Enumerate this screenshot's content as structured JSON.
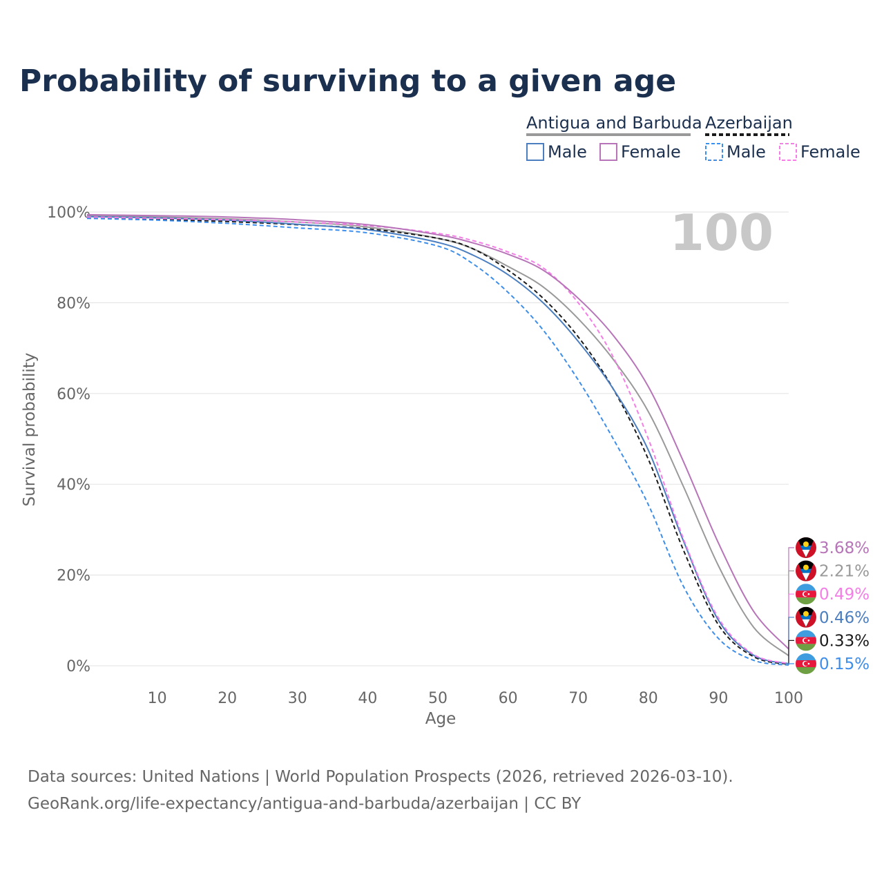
{
  "page": {
    "title": "Probability of surviving to a given age",
    "source_line1": "Data sources: United Nations | World Population Prospects (2026, retrieved 2026-03-10).",
    "source_line2": "GeoRank.org/life-expectancy/antigua-and-barbuda/azerbaijan | CC BY",
    "age_display": "100"
  },
  "legend": {
    "country1": "Antigua and Barbuda",
    "country2": "Azerbaijan",
    "male": "Male",
    "female": "Female"
  },
  "colors": {
    "ab_male": "#4a7ec0",
    "ab_female": "#b774b8",
    "ab_total": "#999999",
    "az_male": "#3d8eea",
    "az_female": "#f47ee6",
    "az_total": "#1a1a1a",
    "title": "#1b2f4e",
    "grid": "#e6e6e6"
  },
  "chart_data": {
    "type": "line",
    "title": "Probability of surviving to a given age",
    "xlabel": "Age",
    "ylabel": "Survival probability",
    "xlim": [
      0,
      100
    ],
    "ylim": [
      0,
      100
    ],
    "xticks": [
      10,
      20,
      30,
      40,
      50,
      60,
      70,
      80,
      90,
      100
    ],
    "yticks": [
      0,
      20,
      40,
      60,
      80,
      100
    ],
    "ytick_labels": [
      "0%",
      "20%",
      "40%",
      "60%",
      "80%",
      "100%"
    ],
    "x": [
      0,
      10,
      20,
      30,
      40,
      50,
      55,
      60,
      65,
      70,
      75,
      80,
      85,
      90,
      95,
      100
    ],
    "series": [
      {
        "name": "Antigua and Barbuda Female",
        "key": "ab_female",
        "dash": false,
        "values": [
          99.4,
          99.2,
          98.9,
          98.3,
          97.2,
          95.0,
          93.2,
          90.7,
          87.2,
          81.0,
          72.8,
          61.5,
          45.0,
          27.0,
          12.0,
          3.68
        ],
        "end_label": "3.68%"
      },
      {
        "name": "Antigua and Barbuda Total",
        "key": "ab_total",
        "dash": false,
        "values": [
          99.2,
          98.9,
          98.5,
          97.8,
          96.7,
          94.2,
          91.9,
          88.0,
          83.5,
          76.5,
          67.5,
          56.0,
          39.5,
          22.0,
          8.5,
          2.21
        ],
        "end_label": "2.21%"
      },
      {
        "name": "Azerbaijan Female",
        "key": "az_female",
        "dash": true,
        "values": [
          98.9,
          98.6,
          98.3,
          97.8,
          97.0,
          95.3,
          93.7,
          91.2,
          87.7,
          80.0,
          68.0,
          50.0,
          28.0,
          10.5,
          2.5,
          0.49
        ],
        "end_label": "0.49%"
      },
      {
        "name": "Antigua and Barbuda Male",
        "key": "ab_male",
        "dash": false,
        "values": [
          99.0,
          98.7,
          98.2,
          97.3,
          96.1,
          93.3,
          90.5,
          86.2,
          80.0,
          71.5,
          61.0,
          47.5,
          27.5,
          10.0,
          2.3,
          0.46
        ],
        "end_label": "0.46%"
      },
      {
        "name": "Azerbaijan Total",
        "key": "az_total",
        "dash": true,
        "values": [
          98.8,
          98.4,
          97.9,
          97.2,
          96.3,
          94.2,
          91.9,
          87.2,
          81.0,
          72.5,
          61.0,
          45.5,
          25.5,
          9.0,
          2.0,
          0.33
        ],
        "end_label": "0.33%"
      },
      {
        "name": "Azerbaijan Male",
        "key": "az_male",
        "dash": true,
        "values": [
          98.6,
          98.2,
          97.5,
          96.5,
          95.4,
          92.5,
          88.6,
          82.3,
          74.0,
          63.0,
          50.0,
          35.5,
          17.5,
          6.0,
          1.2,
          0.15
        ],
        "end_label": "0.15%"
      }
    ]
  }
}
